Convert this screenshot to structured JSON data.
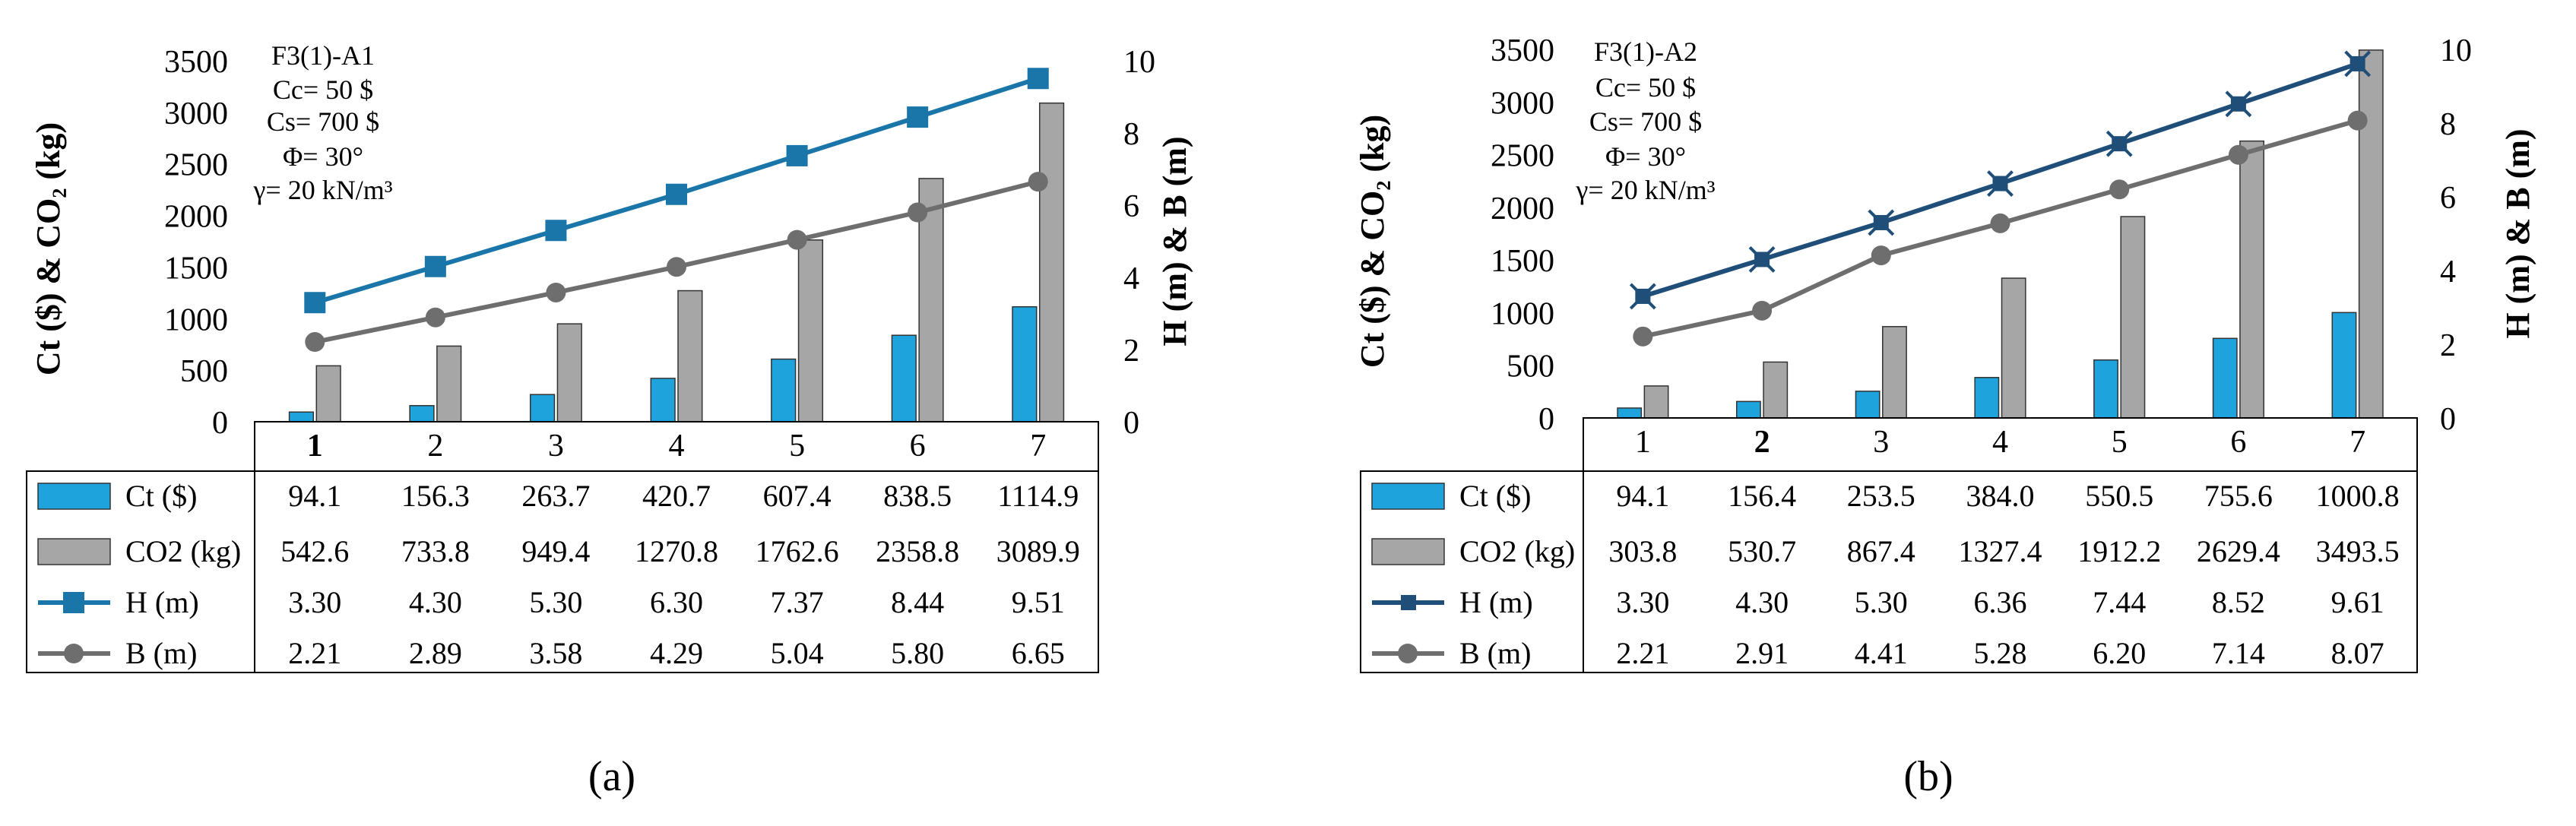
{
  "chart_data": [
    {
      "type": "bar+line",
      "panel_label": "(a)",
      "annotation_lines": [
        "F3(1)-A1",
        "Cc= 50 $",
        "Cs= 700 $",
        "Φ= 30°",
        "γ= 20 kN/m³"
      ],
      "categories": [
        "1",
        "2",
        "3",
        "4",
        "5",
        "6",
        "7"
      ],
      "left_ylabel": "Ct ($) & CO₂ (kg)",
      "right_ylabel": "H (m) & B (m)",
      "left_ylim": [
        0,
        3500
      ],
      "left_ticks": [
        "0",
        "500",
        "1000",
        "1500",
        "2000",
        "2500",
        "3000",
        "3500"
      ],
      "right_ylim": [
        0,
        10
      ],
      "right_ticks": [
        "0",
        "2",
        "4",
        "6",
        "8",
        "10"
      ],
      "series": [
        {
          "name": "Ct ($)",
          "kind": "bar",
          "axis": "left",
          "values": [
            94.1,
            156.3,
            263.7,
            420.7,
            607.4,
            838.5,
            1114.9
          ],
          "labels": [
            "94.1",
            "156.3",
            "263.7",
            "420.7",
            "607.4",
            "838.5",
            "1114.9"
          ]
        },
        {
          "name": "CO2 (kg)",
          "kind": "bar",
          "axis": "left",
          "values": [
            542.6,
            733.8,
            949.4,
            1270.8,
            1762.6,
            2358.8,
            3089.9
          ],
          "labels": [
            "542.6",
            "733.8",
            "949.4",
            "1270.8",
            "1762.6",
            "2358.8",
            "3089.9"
          ]
        },
        {
          "name": "H  (m)",
          "kind": "line",
          "marker": "square",
          "axis": "right",
          "values": [
            3.3,
            4.3,
            5.3,
            6.3,
            7.37,
            8.44,
            9.51
          ],
          "labels": [
            "3.30",
            "4.30",
            "5.30",
            "6.30",
            "7.37",
            "8.44",
            "9.51"
          ]
        },
        {
          "name": "B  (m)",
          "kind": "line",
          "marker": "circle",
          "axis": "right",
          "values": [
            2.21,
            2.89,
            3.58,
            4.29,
            5.04,
            5.8,
            6.65
          ],
          "labels": [
            "2.21",
            "2.89",
            "3.58",
            "4.29",
            "5.04",
            "5.80",
            "6.65"
          ]
        }
      ]
    },
    {
      "type": "bar+line",
      "panel_label": "(b)",
      "annotation_lines": [
        "F3(1)-A2",
        "Cc= 50 $",
        "Cs= 700 $",
        "Φ= 30°",
        "γ= 20 kN/m³"
      ],
      "categories": [
        "1",
        "2",
        "3",
        "4",
        "5",
        "6",
        "7"
      ],
      "left_ylabel": "Ct ($) & CO₂ (kg)",
      "right_ylabel": "H (m) & B (m)",
      "left_ylim": [
        0,
        3500
      ],
      "left_ticks": [
        "0",
        "500",
        "1000",
        "1500",
        "2000",
        "2500",
        "3000",
        "3500"
      ],
      "right_ylim": [
        0,
        10
      ],
      "right_ticks": [
        "0",
        "2",
        "4",
        "6",
        "8",
        "10"
      ],
      "series": [
        {
          "name": "Ct ($)",
          "kind": "bar",
          "axis": "left",
          "values": [
            94.1,
            156.4,
            253.5,
            384.0,
            550.5,
            755.6,
            1000.8
          ],
          "labels": [
            "94.1",
            "156.4",
            "253.5",
            "384.0",
            "550.5",
            "755.6",
            "1000.8"
          ]
        },
        {
          "name": "CO2 (kg)",
          "kind": "bar",
          "axis": "left",
          "values": [
            303.8,
            530.7,
            867.4,
            1327.4,
            1912.2,
            2629.4,
            3493.5
          ],
          "labels": [
            "303.8",
            "530.7",
            "867.4",
            "1327.4",
            "1912.2",
            "2629.4",
            "3493.5"
          ]
        },
        {
          "name": "H  (m)",
          "kind": "line",
          "marker": "cross",
          "axis": "right",
          "values": [
            3.3,
            4.3,
            5.3,
            6.36,
            7.44,
            8.52,
            9.61
          ],
          "labels": [
            "3.30",
            "4.30",
            "5.30",
            "6.36",
            "7.44",
            "8.52",
            "9.61"
          ]
        },
        {
          "name": "B  (m)",
          "kind": "line",
          "marker": "circle",
          "axis": "right",
          "values": [
            2.21,
            2.91,
            4.41,
            5.28,
            6.2,
            7.14,
            8.07
          ],
          "labels": [
            "2.21",
            "2.91",
            "4.41",
            "5.28",
            "6.20",
            "7.14",
            "8.07"
          ]
        }
      ]
    }
  ],
  "colors": {
    "ct_bar": "#1ea3dc",
    "co2_bar": "#a6a6a6",
    "h_line_a": "#1a75a8",
    "h_line_b": "#1f4e79",
    "b_line": "#6e6e6e",
    "grid_border": "#000000"
  }
}
